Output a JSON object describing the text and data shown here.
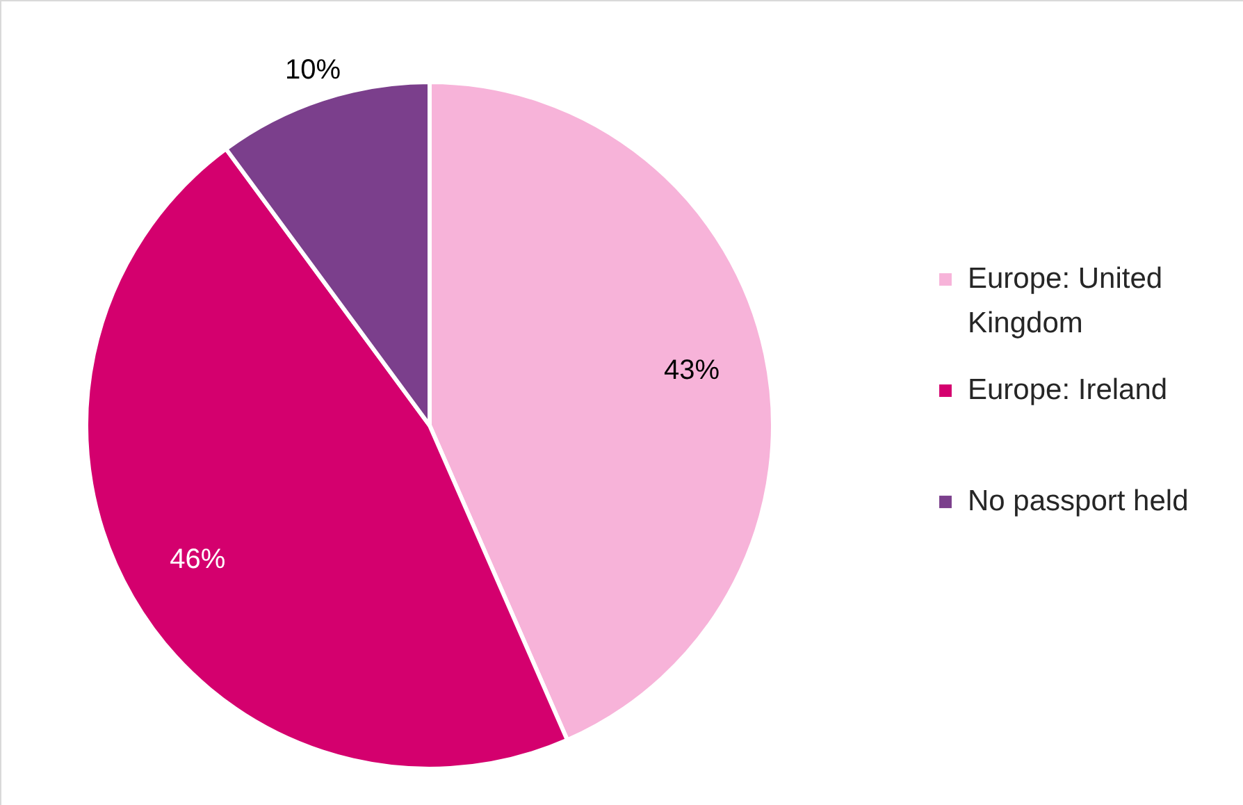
{
  "chart_data": {
    "type": "pie",
    "categories": [
      "Europe: United Kingdom",
      "Europe: Ireland",
      "No passport held"
    ],
    "values": [
      43,
      46,
      10
    ],
    "value_labels": [
      "43%",
      "46%",
      "10%"
    ],
    "colors": [
      "#f7b3d9",
      "#d4006e",
      "#7b3f8c"
    ],
    "legend": "right"
  }
}
